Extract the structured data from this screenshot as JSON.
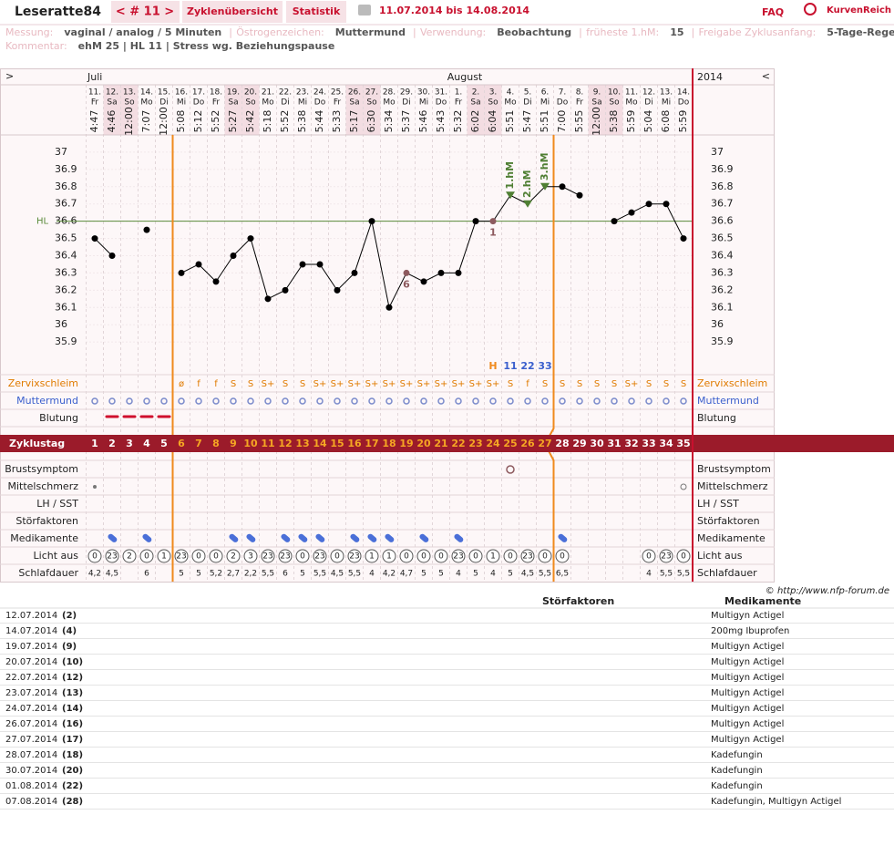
{
  "header": {
    "user": "Leseratte84",
    "nav": "< # 11 >",
    "tabs": [
      "Zyklenübersicht",
      "Statistik"
    ],
    "range": "11.07.2014 bis 14.08.2014",
    "faq": "FAQ",
    "brand": "KurvenReich"
  },
  "info": [
    [
      "Messung:",
      "vaginal / analog / 5 Minuten"
    ],
    [
      "Östrogenzeichen:",
      "Muttermund"
    ],
    [
      "Verwendung:",
      "Beobachtung"
    ],
    [
      "früheste 1.hM:",
      "15"
    ],
    [
      "Freigabe Zyklusanfang:",
      "5-Tage-Regel"
    ],
    [
      "Kommentar:",
      "ehM 25 | HL 11 | Stress wg. Beziehungspause"
    ]
  ],
  "chart_data": {
    "type": "line",
    "nav_left": ">",
    "nav_right": "<",
    "months": [
      "Juli",
      "August"
    ],
    "year": "2014",
    "dates": [
      "11.",
      "12.",
      "13.",
      "14.",
      "15.",
      "16.",
      "17.",
      "18.",
      "19.",
      "20.",
      "21.",
      "22.",
      "23.",
      "24.",
      "25.",
      "26.",
      "27.",
      "28.",
      "29.",
      "30.",
      "31.",
      "1.",
      "2.",
      "3.",
      "4.",
      "5.",
      "6.",
      "7.",
      "8.",
      "9.",
      "10.",
      "11.",
      "12.",
      "13.",
      "14."
    ],
    "weekdays": [
      "Fr",
      "Sa",
      "So",
      "Mo",
      "Di",
      "Mi",
      "Do",
      "Fr",
      "Sa",
      "So",
      "Mo",
      "Di",
      "Mi",
      "Do",
      "Fr",
      "Sa",
      "So",
      "Mo",
      "Di",
      "Mi",
      "Do",
      "Fr",
      "Sa",
      "So",
      "Mo",
      "Di",
      "Mi",
      "Do",
      "Fr",
      "Sa",
      "So",
      "Mo",
      "Di",
      "Mi",
      "Do"
    ],
    "times": [
      "4:47",
      "4:46",
      "12:00",
      "7:07",
      "12:00",
      "5:08",
      "5:12",
      "5:52",
      "5:27",
      "5:42",
      "5:18",
      "5:52",
      "5:38",
      "5:44",
      "5:33",
      "5:17",
      "6:30",
      "5:34",
      "5:37",
      "5:46",
      "5:43",
      "5:32",
      "6:02",
      "6:04",
      "5:51",
      "5:47",
      "5:51",
      "7:00",
      "5:55",
      "12:00",
      "5:38",
      "5:59",
      "5:04",
      "6:08",
      "5:59"
    ],
    "values": [
      36.5,
      36.4,
      null,
      36.55,
      null,
      36.3,
      36.35,
      36.25,
      36.4,
      36.5,
      36.15,
      36.2,
      36.35,
      36.35,
      36.2,
      36.3,
      36.6,
      36.1,
      36.3,
      36.25,
      36.3,
      36.3,
      36.6,
      36.6,
      36.75,
      36.7,
      36.8,
      36.8,
      36.75,
      null,
      36.6,
      36.65,
      36.7,
      36.7,
      36.5
    ],
    "point_labels": [
      null,
      null,
      null,
      null,
      null,
      null,
      null,
      null,
      null,
      null,
      null,
      null,
      null,
      null,
      null,
      null,
      null,
      null,
      "6",
      null,
      null,
      null,
      null,
      "1",
      null,
      null,
      null,
      null,
      null,
      null,
      null,
      null,
      null,
      null,
      null
    ],
    "hm_labels": [
      null,
      null,
      null,
      null,
      null,
      null,
      null,
      null,
      null,
      null,
      null,
      null,
      null,
      null,
      null,
      null,
      null,
      null,
      null,
      null,
      null,
      null,
      null,
      null,
      "1.hM",
      "2.hM",
      "3.hM",
      null,
      null,
      null,
      null,
      null,
      null,
      null,
      null
    ],
    "markers": [
      null,
      null,
      null,
      null,
      null,
      null,
      null,
      null,
      null,
      null,
      null,
      null,
      null,
      null,
      null,
      null,
      null,
      null,
      null,
      null,
      null,
      null,
      null,
      "H",
      "11",
      "22",
      "33",
      null,
      null,
      null,
      null,
      null,
      null,
      null,
      null
    ],
    "ylim": [
      35.7,
      37.1
    ],
    "yticks": [
      35.9,
      36,
      36.1,
      36.2,
      36.3,
      36.4,
      36.5,
      36.6,
      36.7,
      36.8,
      36.9,
      37
    ],
    "hl_label": "HL",
    "hl_value": 36.6,
    "color": "#000000",
    "hl_color": "#5a8a3a",
    "hm_color": "#4f7f33",
    "row_labels": [
      "Zervixschleim",
      "Muttermund",
      "Blutung",
      "Zyklustag",
      "Brustsymptom",
      "Mittelschmerz",
      "LH / SST",
      "Störfaktoren",
      "Medikamente",
      "Licht aus",
      "Schlafdauer"
    ],
    "zervixschleim": [
      null,
      null,
      null,
      null,
      null,
      "ø",
      "f",
      "f",
      "S",
      "S",
      "S+",
      "S",
      "S",
      "S+",
      "S+",
      "S+",
      "S+",
      "S+",
      "S+",
      "S+",
      "S+",
      "S+",
      "S+",
      "S+",
      "S",
      "f",
      "S",
      "S",
      "S",
      "S",
      "S",
      "S+",
      "S",
      "S",
      "S"
    ],
    "cycle_days": [
      1,
      2,
      3,
      4,
      5,
      6,
      7,
      8,
      9,
      10,
      11,
      12,
      13,
      14,
      15,
      16,
      17,
      18,
      19,
      20,
      21,
      22,
      23,
      24,
      25,
      26,
      27,
      28,
      29,
      30,
      31,
      32,
      33,
      34,
      35
    ],
    "licht_aus": [
      0,
      23,
      2,
      0,
      1,
      23,
      0,
      0,
      2,
      3,
      23,
      23,
      0,
      23,
      0,
      23,
      1,
      1,
      0,
      0,
      0,
      23,
      0,
      1,
      0,
      23,
      0,
      0,
      null,
      null,
      null,
      null,
      0,
      23,
      0
    ],
    "schlafdauer": [
      "4,2",
      "4,5",
      null,
      "6",
      null,
      "5",
      "5",
      "5,2",
      "2,7",
      "2,2",
      "5,5",
      "6",
      "5",
      "5,5",
      "4,5",
      "5,5",
      "4",
      "4,2",
      "4,7",
      "5",
      "5",
      "4",
      "5",
      "4",
      "5",
      "4,5",
      "5,5",
      "6,5",
      null,
      null,
      null,
      null,
      "4",
      "5,5",
      "5,5"
    ]
  },
  "copyright": "© http://www.nfp-forum.de",
  "table": {
    "headers": [
      "Störfaktoren",
      "Medikamente"
    ],
    "rows": [
      [
        "12.07.2014",
        "(2)",
        "Multigyn Actigel"
      ],
      [
        "14.07.2014",
        "(4)",
        "200mg Ibuprofen"
      ],
      [
        "19.07.2014",
        "(9)",
        "Multigyn Actigel"
      ],
      [
        "20.07.2014",
        "(10)",
        "Multigyn Actigel"
      ],
      [
        "22.07.2014",
        "(12)",
        "Multigyn Actigel"
      ],
      [
        "23.07.2014",
        "(13)",
        "Multigyn Actigel"
      ],
      [
        "24.07.2014",
        "(14)",
        "Multigyn Actigel"
      ],
      [
        "26.07.2014",
        "(16)",
        "Multigyn Actigel"
      ],
      [
        "27.07.2014",
        "(17)",
        "Multigyn Actigel"
      ],
      [
        "28.07.2014",
        "(18)",
        "Kadefungin"
      ],
      [
        "30.07.2014",
        "(20)",
        "Kadefungin"
      ],
      [
        "01.08.2014",
        "(22)",
        "Kadefungin"
      ],
      [
        "07.08.2014",
        "(28)",
        "Kadefungin, Multigyn Actigel"
      ]
    ]
  }
}
